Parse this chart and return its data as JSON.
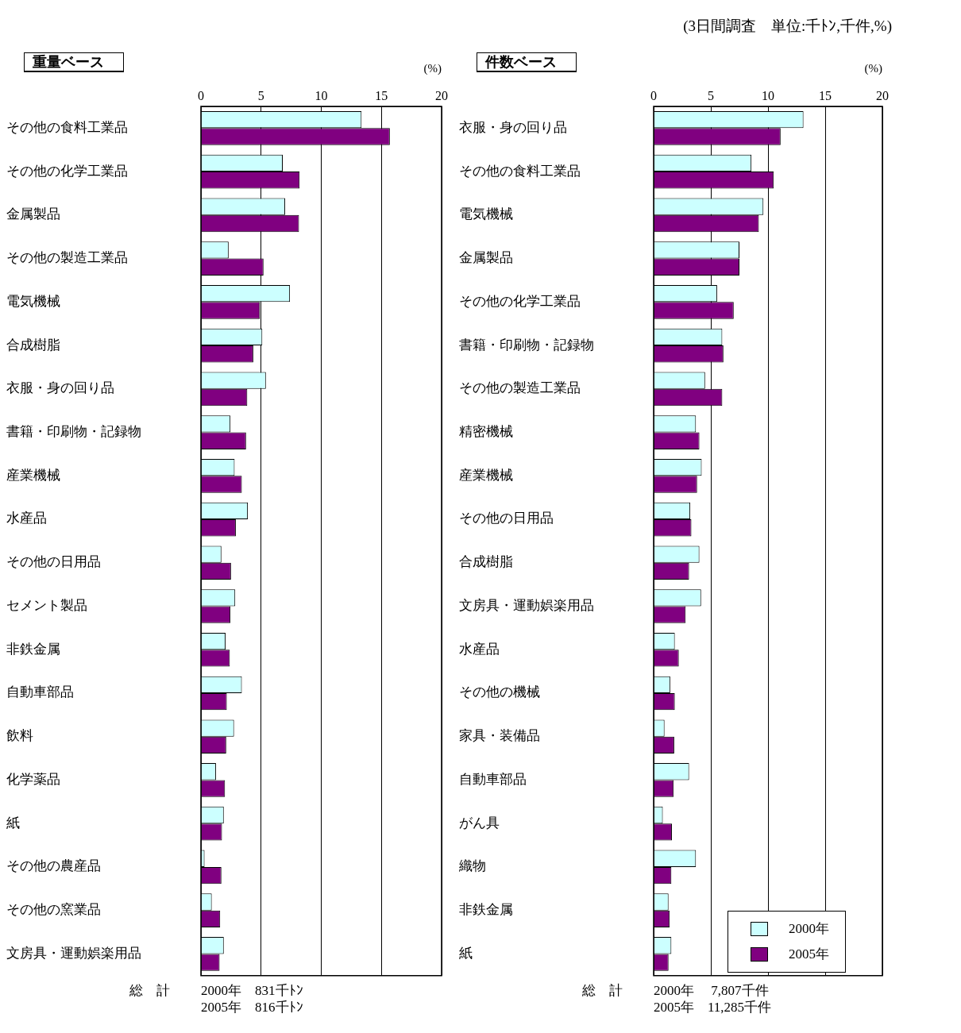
{
  "chart_data": [
    {
      "type": "bar",
      "orientation": "horizontal",
      "title": "重量ベース",
      "xlabel": "(%)",
      "categories": [
        "その他の食料工業品",
        "その他の化学工業品",
        "金属製品",
        "その他の製造工業品",
        "電気機械",
        "合成樹脂",
        "衣服・身の回り品",
        "書籍・印刷物・記録物",
        "産業機械",
        "水産品",
        "その他の日用品",
        "セメント製品",
        "非鉄金属",
        "自動車部品",
        "飲料",
        "化学薬品",
        "紙",
        "その他の農産品",
        "その他の窯業品",
        "文房具・運動娯楽用品"
      ],
      "series": [
        {
          "color": "#ccffff",
          "values": [
            13.35,
            6.8,
            7.0,
            2.3,
            7.4,
            5.1,
            5.4,
            2.45,
            2.8,
            3.9,
            1.7,
            2.85,
            2.05,
            3.4,
            2.75,
            1.25,
            1.9,
            0.3,
            0.9,
            1.9
          ]
        },
        {
          "color": "#800080",
          "values": [
            15.7,
            8.2,
            8.15,
            5.2,
            4.9,
            4.35,
            3.85,
            3.75,
            3.4,
            2.9,
            2.5,
            2.45,
            2.4,
            2.15,
            2.1,
            2.0,
            1.75,
            1.7,
            1.6,
            1.55
          ]
        }
      ],
      "xlim": [
        0,
        20
      ],
      "xticks": [
        0,
        5,
        10,
        15,
        20
      ],
      "grid": "x",
      "legend": false,
      "annotations": [
        "総　計",
        "2000年　831千ﾄﾝ",
        "2005年　816千ﾄﾝ"
      ]
    },
    {
      "type": "bar",
      "orientation": "horizontal",
      "title": "件数ベース",
      "subtitle": "(3日間調査　単位:千ﾄﾝ,千件,%)",
      "xlabel": "(%)",
      "categories": [
        "衣服・身の回り品",
        "その他の食料工業品",
        "電気機械",
        "金属製品",
        "その他の化学工業品",
        "書籍・印刷物・記録物",
        "その他の製造工業品",
        "精密機械",
        "産業機械",
        "その他の日用品",
        "合成樹脂",
        "文房具・運動娯楽用品",
        "水産品",
        "その他の機械",
        "家具・装備品",
        "自動車部品",
        "がん具",
        "織物",
        "非鉄金属",
        "紙"
      ],
      "series": [
        {
          "name": "2000年",
          "color": "#ccffff",
          "values": [
            13.1,
            8.55,
            9.6,
            7.5,
            5.55,
            6.0,
            4.5,
            3.7,
            4.2,
            3.2,
            4.0,
            4.15,
            1.85,
            1.45,
            0.95,
            3.1,
            0.8,
            3.7,
            1.3,
            1.55
          ]
        },
        {
          "name": "2005年",
          "color": "#800080",
          "values": [
            11.1,
            10.5,
            9.2,
            7.5,
            7.0,
            6.1,
            6.0,
            4.0,
            3.8,
            3.3,
            3.1,
            2.8,
            2.2,
            1.85,
            1.8,
            1.75,
            1.6,
            1.55,
            1.4,
            1.3
          ]
        }
      ],
      "xlim": [
        0,
        20
      ],
      "xticks": [
        0,
        5,
        10,
        15,
        20
      ],
      "grid": "x",
      "legend": "bottom right",
      "annotations": [
        "総　計",
        "2000年　 7,807千件",
        "2005年　11,285千件"
      ]
    }
  ]
}
